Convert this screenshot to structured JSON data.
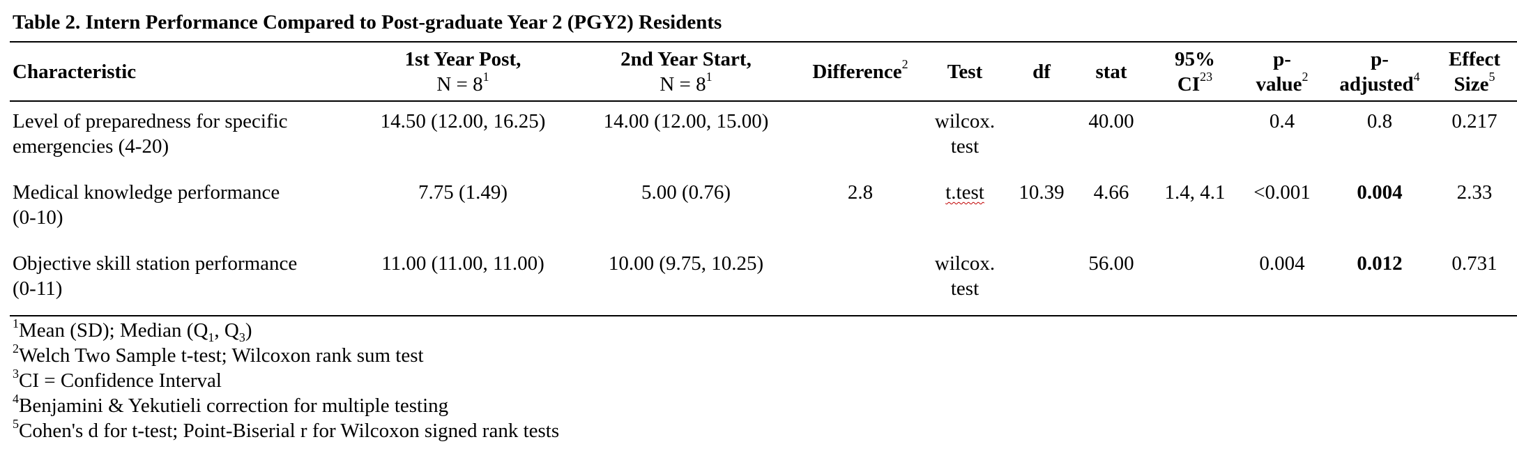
{
  "title": "Table 2. Intern Performance Compared to Post-graduate Year 2 (PGY2) Residents",
  "columns": {
    "characteristic": "Characteristic",
    "first_year_line1": "1st Year Post,",
    "first_year_line2": "N = 8",
    "first_year_sup": "1",
    "second_year_line1": "2nd Year Start,",
    "second_year_line2": "N = 8",
    "second_year_sup": "1",
    "difference": "Difference",
    "difference_sup": "2",
    "test": "Test",
    "df": "df",
    "stat": "stat",
    "ci_line1": "95%",
    "ci_line2": "CI",
    "ci_sup": "23",
    "p_value_line1": "p-",
    "p_value_line2": "value",
    "p_value_sup": "2",
    "p_adjusted_line1": "p-",
    "p_adjusted_line2": "adjusted",
    "p_adjusted_sup": "4",
    "effect_line1": "Effect",
    "effect_line2": "Size",
    "effect_sup": "5"
  },
  "rows": [
    {
      "characteristic_line1": "Level of preparedness for specific",
      "characteristic_line2": "emergencies (4-20)",
      "first_year": "14.50 (12.00, 16.25)",
      "second_year": "14.00 (12.00, 15.00)",
      "difference": "",
      "test_line1": "wilcox.",
      "test_line2": "test",
      "df": "",
      "stat": "40.00",
      "ci": "",
      "p_value": "0.4",
      "p_adjusted": "0.8",
      "effect_size": "0.217"
    },
    {
      "characteristic_line1": "Medical knowledge performance",
      "characteristic_line2": "(0-10)",
      "first_year": "7.75 (1.49)",
      "second_year": "5.00 (0.76)",
      "difference": "2.8",
      "test_line1": "t.test",
      "test_line2": "",
      "df": "10.39",
      "stat": "4.66",
      "ci": "1.4, 4.1",
      "p_value": "<0.001",
      "p_adjusted": "0.004",
      "effect_size": "2.33"
    },
    {
      "characteristic_line1": "Objective skill station performance",
      "characteristic_line2": "(0-11)",
      "first_year": "11.00 (11.00, 11.00)",
      "second_year": "10.00 (9.75, 10.25)",
      "difference": "",
      "test_line1": "wilcox.",
      "test_line2": "test",
      "df": "",
      "stat": "56.00",
      "ci": "",
      "p_value": "0.004",
      "p_adjusted": "0.012",
      "effect_size": "0.731"
    }
  ],
  "footnotes": {
    "n1_sup": "1",
    "n1_text_a": "Mean (SD); Median (Q",
    "n1_sub_a": "1",
    "n1_text_b": ", Q",
    "n1_sub_b": "3",
    "n1_text_c": ")",
    "n2_sup": "2",
    "n2_text": "Welch Two Sample t-test; Wilcoxon rank sum test",
    "n3_sup": "3",
    "n3_text": "CI = Confidence Interval",
    "n4_sup": "4",
    "n4_text": "Benjamini & Yekutieli correction for multiple testing",
    "n5_sup": "5",
    "n5_text": "Cohen's d for t-test; Point-Biserial r for Wilcoxon signed rank tests"
  }
}
